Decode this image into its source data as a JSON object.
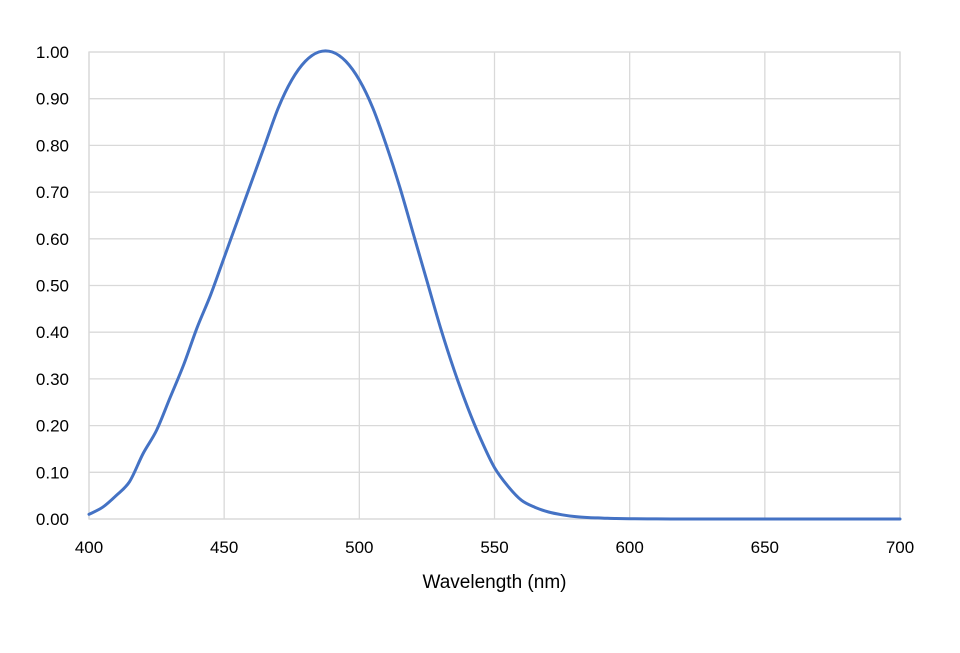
{
  "chart_data": {
    "type": "line",
    "title": "",
    "xlabel": "Wavelength (nm)",
    "ylabel": "",
    "xlim": [
      400,
      700
    ],
    "ylim": [
      0,
      1
    ],
    "x_ticks": [
      400,
      450,
      500,
      550,
      600,
      650,
      700
    ],
    "x_tick_labels": [
      "400",
      "450",
      "500",
      "550",
      "600",
      "650",
      "700"
    ],
    "y_ticks": [
      0,
      0.1,
      0.2,
      0.3,
      0.4,
      0.5,
      0.6,
      0.7,
      0.8,
      0.9,
      1.0
    ],
    "y_tick_labels": [
      "0.00",
      "0.10",
      "0.20",
      "0.30",
      "0.40",
      "0.50",
      "0.60",
      "0.70",
      "0.80",
      "0.90",
      "1.00"
    ],
    "grid": true,
    "legend": "none",
    "line_color": "#4472c4",
    "series": [
      {
        "x": [
          400,
          405,
          410,
          415,
          420,
          425,
          430,
          435,
          440,
          445,
          450,
          455,
          460,
          465,
          470,
          475,
          480,
          485,
          490,
          495,
          500,
          505,
          510,
          515,
          520,
          525,
          530,
          535,
          540,
          545,
          550,
          555,
          560,
          565,
          570,
          575,
          580,
          585,
          590,
          595,
          600,
          610,
          620,
          630,
          640,
          650,
          660,
          670,
          680,
          690,
          700
        ],
        "y": [
          0.01,
          0.025,
          0.05,
          0.08,
          0.14,
          0.19,
          0.26,
          0.33,
          0.41,
          0.48,
          0.56,
          0.64,
          0.72,
          0.8,
          0.88,
          0.94,
          0.98,
          1.0,
          1.0,
          0.98,
          0.94,
          0.88,
          0.8,
          0.71,
          0.61,
          0.51,
          0.41,
          0.32,
          0.24,
          0.17,
          0.11,
          0.07,
          0.04,
          0.025,
          0.015,
          0.009,
          0.005,
          0.003,
          0.002,
          0.001,
          0.0005,
          0.0002,
          0.0001,
          0,
          0,
          0,
          0,
          0,
          0,
          0,
          0
        ]
      }
    ]
  }
}
